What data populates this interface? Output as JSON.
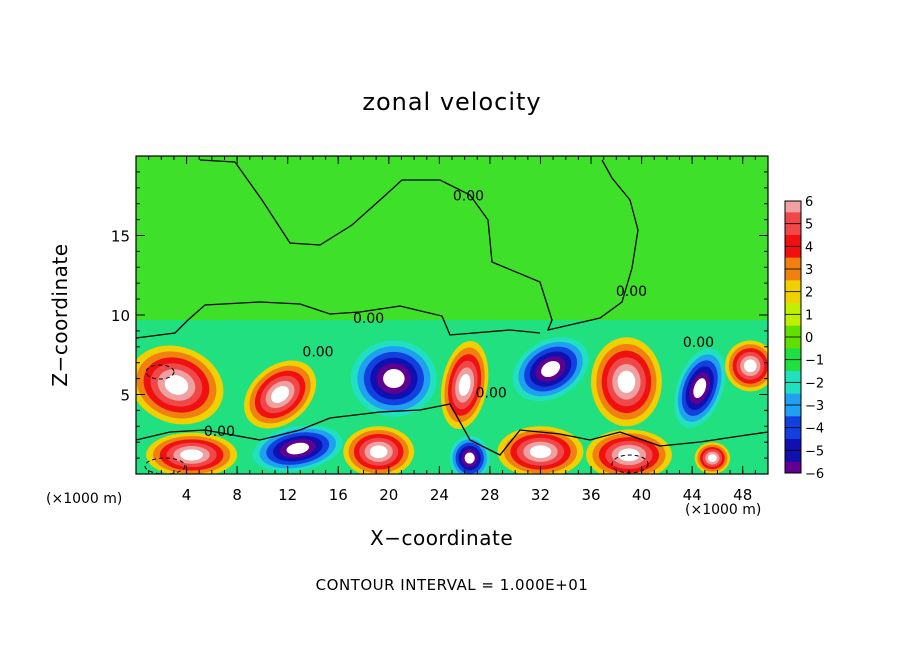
{
  "chart_data": {
    "type": "heatmap",
    "title": "zonal velocity",
    "xlabel": "X−coordinate",
    "ylabel": "Z−coordinate",
    "x_unit_note": "(×1000 m)",
    "x_unit_note_right": "(×1000 m)",
    "xlim": [
      0,
      50
    ],
    "ylim": [
      0,
      20
    ],
    "x_ticks": [
      4,
      8,
      12,
      16,
      20,
      24,
      28,
      32,
      36,
      40,
      44,
      48
    ],
    "x_tick_labels": [
      "4",
      "8",
      "12",
      "16",
      "20",
      "24",
      "28",
      "32",
      "36",
      "40",
      "44",
      "48"
    ],
    "y_ticks": [
      5,
      10,
      15
    ],
    "y_tick_labels": [
      "5",
      "10",
      "15"
    ],
    "colorbar": {
      "levels": [
        6,
        5,
        4,
        3,
        2,
        1,
        0,
        -1,
        -2,
        -3,
        -4,
        -5,
        -6
      ],
      "labels": [
        "6",
        "5",
        "4",
        "3",
        "2",
        "1",
        "0",
        "−1",
        "−2",
        "−3",
        "−4",
        "−5",
        "−6"
      ],
      "colors": [
        "#f0a0a0",
        "#f04848",
        "#f01010",
        "#f08010",
        "#f0d000",
        "#c0f000",
        "#60e000",
        "#20e040",
        "#20e0c0",
        "#20a0f0",
        "#1040e0",
        "#1010b0",
        "#600090"
      ]
    },
    "contour_labels": [
      {
        "text": "0.00",
        "x": 26.3,
        "z": 17.2
      },
      {
        "text": "0.00",
        "x": 39.2,
        "z": 11.2
      },
      {
        "text": "0.00",
        "x": 18.4,
        "z": 9.5
      },
      {
        "text": "0.00",
        "x": 14.4,
        "z": 7.4
      },
      {
        "text": "0.00",
        "x": 28.1,
        "z": 4.8
      },
      {
        "text": "0.00",
        "x": 6.6,
        "z": 2.4
      },
      {
        "text": "0.00",
        "x": 44.5,
        "z": 8.0
      }
    ],
    "blobs": [
      {
        "kind": "pos",
        "cx": 3.2,
        "cz": 5.6,
        "rx": 3.8,
        "rz": 2.4,
        "rot": 20
      },
      {
        "kind": "pos",
        "cx": 11.4,
        "cz": 5.0,
        "rx": 3.2,
        "rz": 1.8,
        "rot": -40
      },
      {
        "kind": "neg",
        "cx": 20.4,
        "cz": 6.0,
        "rx": 3.4,
        "rz": 2.4,
        "rot": 0
      },
      {
        "kind": "pos",
        "cx": 26.0,
        "cz": 5.6,
        "rx": 1.8,
        "rz": 2.8,
        "rot": 10
      },
      {
        "kind": "neg",
        "cx": 32.8,
        "cz": 6.6,
        "rx": 3.2,
        "rz": 1.8,
        "rot": -30
      },
      {
        "kind": "pos",
        "cx": 38.8,
        "cz": 5.8,
        "rx": 2.8,
        "rz": 2.8,
        "rot": 0
      },
      {
        "kind": "neg",
        "cx": 44.6,
        "cz": 5.4,
        "rx": 1.8,
        "rz": 2.6,
        "rot": 20
      },
      {
        "kind": "pos",
        "cx": 48.6,
        "cz": 6.8,
        "rx": 2.0,
        "rz": 1.6,
        "rot": 0
      },
      {
        "kind": "neg",
        "cx": 12.8,
        "cz": 1.6,
        "rx": 3.6,
        "rz": 1.4,
        "rot": -10
      },
      {
        "kind": "pos",
        "cx": 4.4,
        "cz": 1.2,
        "rx": 3.6,
        "rz": 1.4,
        "rot": 0
      },
      {
        "kind": "pos",
        "cx": 19.2,
        "cz": 1.4,
        "rx": 2.8,
        "rz": 1.6,
        "rot": 0
      },
      {
        "kind": "neg",
        "cx": 26.4,
        "cz": 1.0,
        "rx": 1.6,
        "rz": 1.4,
        "rot": 0
      },
      {
        "kind": "pos",
        "cx": 32.0,
        "cz": 1.4,
        "rx": 3.4,
        "rz": 1.6,
        "rot": 0
      },
      {
        "kind": "pos",
        "cx": 39.0,
        "cz": 1.2,
        "rx": 3.4,
        "rz": 1.6,
        "rot": 0
      },
      {
        "kind": "pos",
        "cx": 45.6,
        "cz": 1.0,
        "rx": 1.4,
        "rz": 1.0,
        "rot": 0
      }
    ]
  },
  "footer": {
    "contour_interval": "CONTOUR INTERVAL =  1.000E+01"
  }
}
